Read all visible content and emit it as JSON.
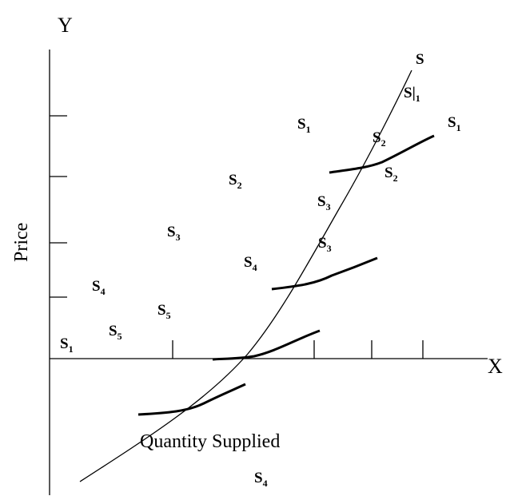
{
  "diagram": {
    "axes": {
      "y_letter": "Y",
      "x_letter": "X",
      "y_title": "Price",
      "x_title": "Quantity Supplied"
    },
    "labels": {
      "s_top": "S",
      "s_bar1": "S|",
      "s_bar1_sub": "1",
      "s1_a": "S",
      "s1_a_sub": "1",
      "s1_b": "S",
      "s1_b_sub": "1",
      "s2_a": "S",
      "s2_a_sub": "2",
      "s2_b": "S",
      "s2_b_sub": "2",
      "s2_c": "S",
      "s2_c_sub": "2",
      "s3_a": "S",
      "s3_a_sub": "3",
      "s3_b": "S",
      "s3_b_sub": "3",
      "s3_c": "S",
      "s3_c_sub": "3",
      "s4_a": "S",
      "s4_a_sub": "4",
      "s4_b": "S",
      "s4_b_sub": "4",
      "s4_c": "S",
      "s4_c_sub": "4",
      "s5": "S",
      "s5_sub": "5",
      "s1_c": "S",
      "s1_c_sub": "1"
    }
  }
}
